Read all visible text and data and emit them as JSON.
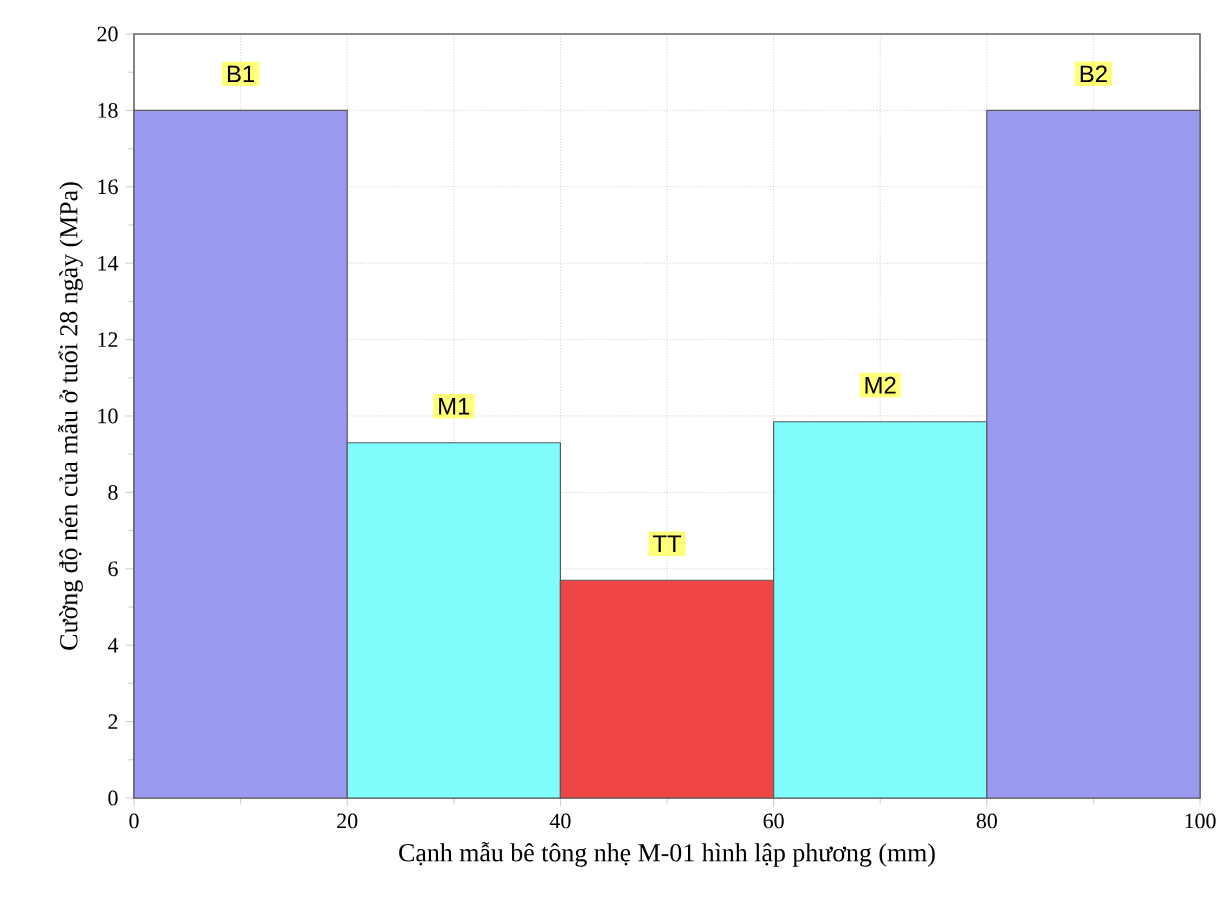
{
  "chart_data": {
    "type": "histogram",
    "xlabel": "Cạnh mẫu bê tông nhẹ M-01 hình lập phương (mm)",
    "ylabel": "Cường độ nén của mẫu ở tuổi 28 ngày (MPa)",
    "bins": [
      0,
      20,
      40,
      60,
      80,
      100
    ],
    "values": [
      18,
      9.3,
      5.7,
      9.85,
      18
    ],
    "colors": [
      "#9a9af0",
      "#80fcfc",
      "#f04545",
      "#80fcfc",
      "#9a9af0"
    ],
    "xlim": [
      0,
      100
    ],
    "xticks": [
      0,
      20,
      40,
      60,
      80,
      100
    ],
    "ylim": [
      0,
      20
    ],
    "yticks": [
      0,
      2,
      4,
      6,
      8,
      10,
      12,
      14,
      16,
      18,
      20
    ],
    "grid": true,
    "annotations": [
      {
        "text": "B1",
        "x": 10,
        "y": 18
      },
      {
        "text": "M1",
        "x": 30,
        "y": 9.3
      },
      {
        "text": "TT",
        "x": 50,
        "y": 5.7
      },
      {
        "text": "M2",
        "x": 70,
        "y": 9.85
      },
      {
        "text": "B2",
        "x": 90,
        "y": 18
      }
    ]
  }
}
